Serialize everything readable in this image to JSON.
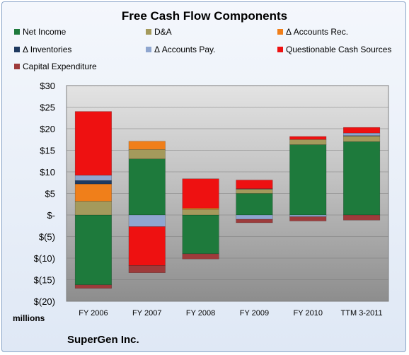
{
  "company": "SuperGen Inc.",
  "units_label": "millions",
  "colors": {
    "Net Income": "#1e7a3c",
    "D&A": "#a49a5c",
    "Δ Accounts Rec.": "#f07f1a",
    "Δ Inventories": "#1f3a60",
    "Δ Accounts Pay.": "#8fa6cf",
    "Questionable Cash Sources": "#ee1111",
    "Capital Expenditure": "#9e3b3b"
  },
  "chart_data": {
    "type": "bar",
    "stacked": true,
    "title": "Free Cash Flow Components",
    "xlabel": "",
    "ylabel": "",
    "ylim": [
      -20,
      30
    ],
    "y_ticks": [
      30,
      25,
      20,
      15,
      10,
      5,
      0,
      -5,
      -10,
      -15,
      -20
    ],
    "y_tick_labels": [
      "$30",
      "$25",
      "$20",
      "$15",
      "$10",
      "$5",
      "$-",
      "$(5)",
      "$(10)",
      "$(15)",
      "$(20)"
    ],
    "grid": true,
    "legend": "top",
    "categories": [
      "FY 2006",
      "FY 2007",
      "FY 2008",
      "FY 2009",
      "FY 2010",
      "TTM 3-2011"
    ],
    "series": [
      {
        "name": "Net Income",
        "values": [
          -16.2,
          13.0,
          -9.0,
          5.0,
          16.3,
          17.0
        ]
      },
      {
        "name": "D&A",
        "values": [
          3.2,
          2.2,
          1.3,
          1.0,
          1.2,
          1.3
        ]
      },
      {
        "name": "Δ Accounts Rec.",
        "values": [
          4.0,
          1.9,
          0.3,
          0.0,
          0.0,
          0.0
        ]
      },
      {
        "name": "Δ Inventories",
        "values": [
          0.8,
          0.0,
          0.0,
          0.1,
          0.0,
          0.1
        ]
      },
      {
        "name": "Δ Accounts Pay.",
        "values": [
          1.2,
          -2.7,
          0.0,
          -1.0,
          -0.4,
          0.6
        ]
      },
      {
        "name": "Questionable Cash Sources",
        "values": [
          14.8,
          -9.0,
          6.8,
          2.0,
          0.7,
          1.3
        ]
      },
      {
        "name": "Capital Expenditure",
        "values": [
          -0.8,
          -1.7,
          -1.2,
          -0.8,
          -1.0,
          -1.2
        ]
      }
    ]
  }
}
